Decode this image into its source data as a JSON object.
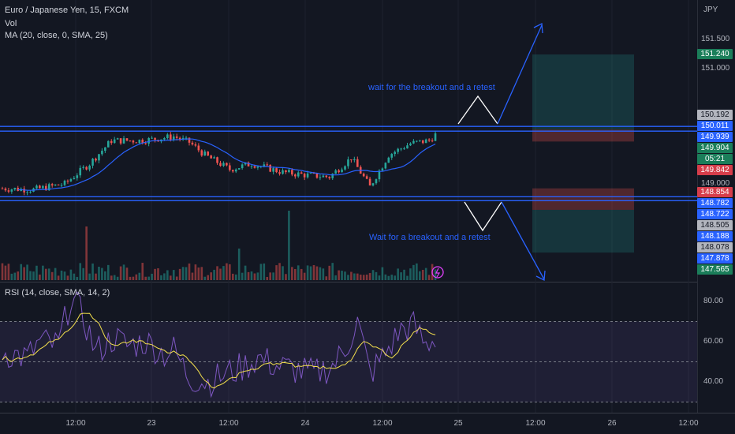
{
  "chart_data": {
    "type": "candlestick",
    "symbol": "Euro / Japanese Yen, 15, FXCM",
    "indicators": [
      "Vol",
      "MA (20, close, 0, SMA, 25)",
      "RSI (14, close, SMA, 14, 2)"
    ],
    "currency": "JPY",
    "price_axis": {
      "ticks": [
        "151.500",
        "151.000",
        "149.000"
      ],
      "range": [
        147.5,
        151.9
      ]
    },
    "rsi_axis": {
      "ticks": [
        "80.00",
        "60.00",
        "40.00"
      ],
      "range": [
        30,
        90
      ],
      "upper_band": 70,
      "lower_band": 30,
      "mid": 50
    },
    "time_axis": [
      "12:00",
      "23",
      "12:00",
      "24",
      "12:00",
      "25",
      "12:00",
      "26",
      "12:00"
    ],
    "resistance_level": 149.94,
    "support_level": 148.75,
    "long_position": {
      "entry": 149.939,
      "stop": 149.842,
      "target": 151.24
    },
    "short_position": {
      "entry": 148.782,
      "stop": 148.854,
      "target": 147.565
    },
    "price_tags": [
      {
        "label": "151.240",
        "price": 151.24,
        "bg": "#1b7e5a",
        "fg": "#ffffff"
      },
      {
        "label": "150.192",
        "price": 150.192,
        "bg": "#b2b5be",
        "fg": "#131722"
      },
      {
        "label": "150.011",
        "price": 150.011,
        "bg": "#2962ff",
        "fg": "#ffffff"
      },
      {
        "label": "149.939",
        "price": 149.939,
        "bg": "#2962ff",
        "fg": "#ffffff"
      },
      {
        "label": "149.904",
        "price": 149.904,
        "bg": "#1b7e5a",
        "fg": "#ffffff"
      },
      {
        "label": "05:21",
        "price": 149.83,
        "bg": "#1b7e5a",
        "fg": "#ffffff"
      },
      {
        "label": "149.842",
        "price": 149.8,
        "bg": "#d63d4a",
        "fg": "#ffffff"
      },
      {
        "label": "148.854",
        "price": 148.854,
        "bg": "#d63d4a",
        "fg": "#ffffff"
      },
      {
        "label": "148.782",
        "price": 148.782,
        "bg": "#2962ff",
        "fg": "#ffffff"
      },
      {
        "label": "148.722",
        "price": 148.722,
        "bg": "#2962ff",
        "fg": "#ffffff"
      },
      {
        "label": "148.505",
        "price": 148.505,
        "bg": "#b2b5be",
        "fg": "#131722"
      },
      {
        "label": "148.188",
        "price": 148.188,
        "bg": "#2962ff",
        "fg": "#ffffff"
      },
      {
        "label": "148.078",
        "price": 148.078,
        "bg": "#b2b5be",
        "fg": "#131722"
      },
      {
        "label": "147.878",
        "price": 147.878,
        "bg": "#2962ff",
        "fg": "#ffffff"
      },
      {
        "label": "147.565",
        "price": 147.565,
        "bg": "#1b7e5a",
        "fg": "#ffffff"
      }
    ],
    "annotations": [
      "wait for the breakout and a retest",
      "Wait for a breakout and a retest"
    ],
    "colors": {
      "up": "#26a69a",
      "down": "#ef5350",
      "ma": "#2962ff",
      "rsi": "#7e57c2",
      "rsi_ma": "#f4e04d",
      "line": "#2962ff"
    }
  }
}
